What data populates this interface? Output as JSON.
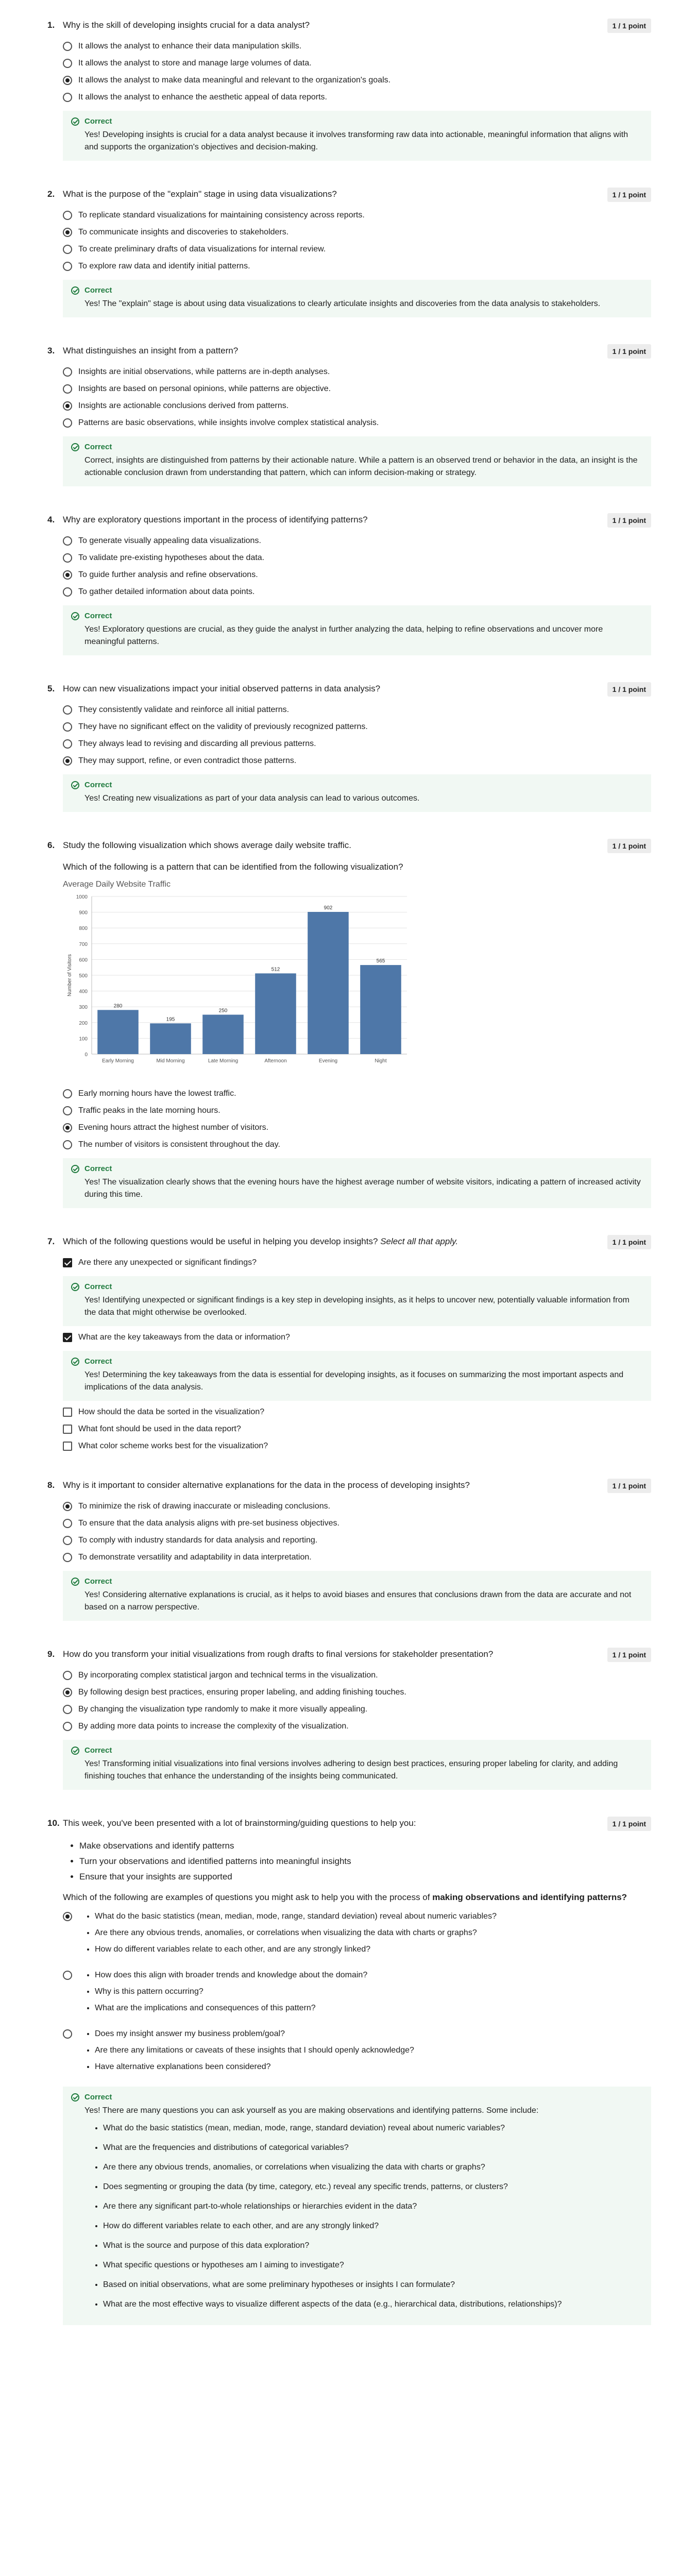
{
  "questions": [
    {
      "num": "1.",
      "text": "Why is the skill of developing insights crucial for a data analyst?",
      "points": "1 / 1 point",
      "options": [
        {
          "label": "It allows the analyst to enhance their data manipulation skills.",
          "selected": false
        },
        {
          "label": "It allows the analyst to store and manage large volumes of data.",
          "selected": false
        },
        {
          "label": "It allows the analyst to make data meaningful and relevant to the organization's goals.",
          "selected": true
        },
        {
          "label": "It allows the analyst to enhance the aesthetic appeal of data reports.",
          "selected": false
        }
      ],
      "feedback": {
        "label": "Correct",
        "text": "Yes! Developing insights is crucial for a data analyst because it involves transforming raw data into actionable, meaningful information that aligns with and supports the organization's objectives and decision-making."
      }
    },
    {
      "num": "2.",
      "text": "What is the purpose of the \"explain\" stage in using data visualizations?",
      "points": "1 / 1 point",
      "options": [
        {
          "label": "To replicate standard visualizations for maintaining consistency across reports.",
          "selected": false
        },
        {
          "label": "To communicate insights and discoveries to stakeholders.",
          "selected": true
        },
        {
          "label": "To create preliminary drafts of data visualizations for internal review.",
          "selected": false
        },
        {
          "label": "To explore raw data and identify initial patterns.",
          "selected": false
        }
      ],
      "feedback": {
        "label": "Correct",
        "text": "Yes! The \"explain\" stage is about using data visualizations to clearly articulate insights and discoveries from the data analysis to stakeholders."
      }
    },
    {
      "num": "3.",
      "text": "What distinguishes an insight from a pattern?",
      "points": "1 / 1 point",
      "options": [
        {
          "label": "Insights are initial observations, while patterns are in-depth analyses.",
          "selected": false
        },
        {
          "label": "Insights are based on personal opinions, while patterns are objective.",
          "selected": false
        },
        {
          "label": "Insights are actionable conclusions derived from patterns.",
          "selected": true
        },
        {
          "label": "Patterns are basic observations, while insights involve complex statistical analysis.",
          "selected": false
        }
      ],
      "feedback": {
        "label": "Correct",
        "text": "Correct, insights are distinguished from patterns by their actionable nature. While a pattern is an observed trend or behavior in the data, an insight is the actionable conclusion drawn from understanding that pattern, which can inform decision-making or strategy."
      }
    },
    {
      "num": "4.",
      "text": "Why are exploratory questions important in the process of identifying patterns?",
      "points": "1 / 1 point",
      "options": [
        {
          "label": "To generate visually appealing data visualizations.",
          "selected": false
        },
        {
          "label": "To validate pre-existing hypotheses about the data.",
          "selected": false
        },
        {
          "label": "To guide further analysis and refine observations.",
          "selected": true
        },
        {
          "label": "To gather detailed information about data points.",
          "selected": false
        }
      ],
      "feedback": {
        "label": "Correct",
        "text": "Yes! Exploratory questions are crucial, as they guide the analyst in further analyzing the data, helping to refine observations and uncover more meaningful patterns."
      }
    },
    {
      "num": "5.",
      "text": "How can new visualizations impact your initial observed patterns in data analysis?",
      "points": "1 / 1 point",
      "options": [
        {
          "label": "They consistently validate and reinforce all initial patterns.",
          "selected": false
        },
        {
          "label": "They have no significant effect on the validity of previously recognized patterns.",
          "selected": false
        },
        {
          "label": "They always lead to revising and discarding all previous patterns.",
          "selected": false
        },
        {
          "label": "They may support, refine, or even contradict those patterns.",
          "selected": true
        }
      ],
      "feedback": {
        "label": "Correct",
        "text": "Yes! Creating new visualizations as part of your data analysis can lead to various outcomes."
      }
    },
    {
      "num": "6.",
      "text": "Study the following visualization which shows average daily website traffic.",
      "sub": "Which of the following is a pattern that can be identified from the following visualization?",
      "points": "1 / 1 point",
      "options": [
        {
          "label": "Early morning hours have the lowest traffic.",
          "selected": false
        },
        {
          "label": "Traffic peaks in the late morning hours.",
          "selected": false
        },
        {
          "label": "Evening hours attract the highest number of visitors.",
          "selected": true
        },
        {
          "label": "The number of visitors is consistent throughout the day.",
          "selected": false
        }
      ],
      "feedback": {
        "label": "Correct",
        "text": "Yes! The visualization clearly shows that the evening hours have the highest average number of website visitors, indicating a pattern of increased activity during this time."
      }
    },
    {
      "num": "7.",
      "text": "Which of the following questions would be useful in helping you develop insights?",
      "text_em": "Select all that apply.",
      "points": "1 / 1 point",
      "options": [
        {
          "label": "Are there any unexpected or significant findings?",
          "selected": true,
          "feedback": {
            "label": "Correct",
            "text": "Yes! Identifying unexpected or significant findings is a key step in developing insights, as it helps to uncover new, potentially valuable information from the data that might otherwise be overlooked."
          }
        },
        {
          "label": "What are the key takeaways from the data or information?",
          "selected": true,
          "feedback": {
            "label": "Correct",
            "text": "Yes! Determining the key takeaways from the data is essential for developing insights, as it focuses on summarizing the most important aspects and implications of the data analysis."
          }
        },
        {
          "label": "How should the data be sorted in the visualization?",
          "selected": false
        },
        {
          "label": "What font should be used in the data report?",
          "selected": false
        },
        {
          "label": "What color scheme works best for the visualization?",
          "selected": false
        }
      ]
    },
    {
      "num": "8.",
      "text": "Why is it important to consider alternative explanations for the data in the process of developing insights?",
      "points": "1 / 1 point",
      "options": [
        {
          "label": "To minimize the risk of drawing inaccurate or misleading conclusions.",
          "selected": true
        },
        {
          "label": "To ensure that the data analysis aligns with pre-set business objectives.",
          "selected": false
        },
        {
          "label": "To comply with industry standards for data analysis and reporting.",
          "selected": false
        },
        {
          "label": "To demonstrate versatility and adaptability in data interpretation.",
          "selected": false
        }
      ],
      "feedback": {
        "label": "Correct",
        "text": "Yes! Considering alternative explanations is crucial, as it helps to avoid biases and ensures that conclusions drawn from the data are accurate and not based on a narrow perspective."
      }
    },
    {
      "num": "9.",
      "text": "How do you transform your initial visualizations from rough drafts to final versions for stakeholder presentation?",
      "points": "1 / 1 point",
      "options": [
        {
          "label": "By incorporating complex statistical jargon and technical terms in the visualization.",
          "selected": false
        },
        {
          "label": "By following design best practices, ensuring proper labeling, and adding finishing touches.",
          "selected": true
        },
        {
          "label": "By changing the visualization type randomly to make it more visually appealing.",
          "selected": false
        },
        {
          "label": "By adding more data points to increase the complexity of the visualization.",
          "selected": false
        }
      ],
      "feedback": {
        "label": "Correct",
        "text": "Yes! Transforming initial visualizations into final versions involves adhering to design best practices, ensuring proper labeling for clarity, and adding finishing touches that enhance the understanding of the insights being communicated."
      }
    }
  ],
  "q10": {
    "num": "10.",
    "text": "This week, you've been presented with a lot of brainstorming/guiding questions to help you:",
    "points": "1 / 1 point",
    "bullets": [
      "Make observations and identify patterns",
      "Turn your observations and identified patterns into meaningful insights",
      "Ensure that your insights are supported"
    ],
    "sub_plain": "Which of the following are examples of questions you might ask to help you with the process of ",
    "sub_bold": "making observations and identifying patterns",
    "sub_end": "?",
    "groups": [
      {
        "selected": true,
        "items": [
          "What do the basic statistics (mean, median, mode, range, standard deviation) reveal about numeric variables?",
          "Are there any obvious trends, anomalies, or correlations when visualizing the data with charts or graphs?",
          "How do different variables relate to each other, and are any strongly linked?"
        ]
      },
      {
        "selected": false,
        "items": [
          "How does this align with broader trends and knowledge about the domain?",
          "Why is this pattern occurring?",
          "What are the implications and consequences of this pattern?"
        ]
      },
      {
        "selected": false,
        "items": [
          "Does my insight answer my business problem/goal?",
          "Are there any limitations or caveats of these insights that I should openly acknowledge?",
          "Have alternative explanations been considered?"
        ]
      }
    ],
    "feedback": {
      "label": "Correct",
      "text": "Yes! There are many questions you can ask yourself as you are making observations and identifying patterns. Some include:",
      "items": [
        "What do the basic statistics (mean, median, mode, range, standard deviation) reveal about numeric variables?",
        "What are the frequencies and distributions of categorical variables?",
        "Are there any obvious trends, anomalies, or correlations when visualizing the data with charts or graphs?",
        "Does segmenting or grouping the data (by time, category, etc.) reveal any specific trends, patterns, or clusters?",
        "Are there any significant part-to-whole relationships or hierarchies evident in the data?",
        "How do different variables relate to each other, and are any strongly linked?",
        "What is the source and purpose of this data exploration?",
        "What specific questions or hypotheses am I aiming to investigate?",
        "Based on initial observations, what are some preliminary hypotheses or insights I can formulate?",
        "What are the most effective ways to visualize different aspects of the data (e.g., hierarchical data, distributions, relationships)?"
      ]
    }
  },
  "chart_data": {
    "type": "bar",
    "title": "Average Daily Website Traffic",
    "xlabel": "",
    "ylabel": "Number of Visitors",
    "categories": [
      "Early Morning",
      "Mid Morning",
      "Late Morning",
      "Afternoon",
      "Evening",
      "Night"
    ],
    "values": [
      280,
      195,
      250,
      512,
      902,
      565
    ],
    "data_labels": [
      "280",
      "195",
      "250",
      "512",
      "902",
      "565"
    ],
    "ylim": [
      0,
      1000
    ],
    "yticks": [
      0,
      100,
      200,
      300,
      400,
      500,
      600,
      700,
      800,
      900,
      1000
    ],
    "grid": true,
    "bar_color": "#4e77a8"
  }
}
